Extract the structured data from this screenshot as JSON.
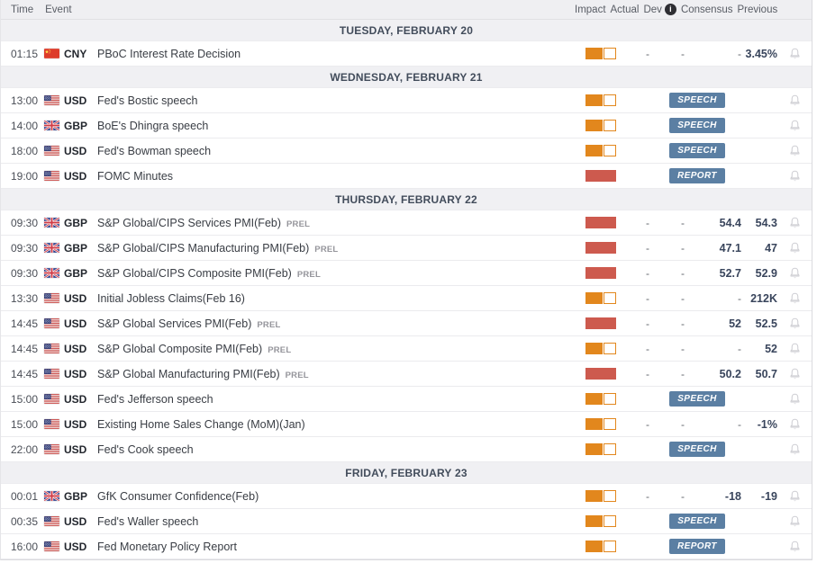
{
  "header": {
    "time": "Time",
    "event": "Event",
    "impact": "Impact",
    "actual": "Actual",
    "dev": "Dev",
    "info": "i",
    "consensus": "Consensus",
    "previous": "Previous"
  },
  "colors": {
    "impact_medium": "#e2871d",
    "impact_high": "#cd5a4e",
    "badge_bg": "#5b7fa3",
    "section_bg": "#f0f0f3",
    "header_bg": "#efeff2",
    "value_text": "#39455c"
  },
  "sections": [
    {
      "date": "TUESDAY, FEBRUARY 20",
      "rows": [
        {
          "time": "01:15",
          "currency": "CNY",
          "flag": "cn",
          "event": "PBoC Interest Rate Decision",
          "impact": "medium",
          "actual": "-",
          "dev": "-",
          "consensus": "-",
          "previous": "3.45%"
        }
      ]
    },
    {
      "date": "WEDNESDAY, FEBRUARY 21",
      "rows": [
        {
          "time": "13:00",
          "currency": "USD",
          "flag": "us",
          "event": "Fed's Bostic speech",
          "impact": "medium",
          "badge": "SPEECH"
        },
        {
          "time": "14:00",
          "currency": "GBP",
          "flag": "gb",
          "event": "BoE's Dhingra speech",
          "impact": "medium",
          "badge": "SPEECH"
        },
        {
          "time": "18:00",
          "currency": "USD",
          "flag": "us",
          "event": "Fed's Bowman speech",
          "impact": "medium",
          "badge": "SPEECH"
        },
        {
          "time": "19:00",
          "currency": "USD",
          "flag": "us",
          "event": "FOMC Minutes",
          "impact": "high",
          "badge": "REPORT"
        }
      ]
    },
    {
      "date": "THURSDAY, FEBRUARY 22",
      "rows": [
        {
          "time": "09:30",
          "currency": "GBP",
          "flag": "gb",
          "event": "S&P Global/CIPS Services PMI(Feb)",
          "prel": "PREL",
          "impact": "high",
          "actual": "-",
          "dev": "-",
          "consensus": "54.4",
          "previous": "54.3"
        },
        {
          "time": "09:30",
          "currency": "GBP",
          "flag": "gb",
          "event": "S&P Global/CIPS Manufacturing PMI(Feb)",
          "prel": "PREL",
          "impact": "high",
          "actual": "-",
          "dev": "-",
          "consensus": "47.1",
          "previous": "47"
        },
        {
          "time": "09:30",
          "currency": "GBP",
          "flag": "gb",
          "event": "S&P Global/CIPS Composite PMI(Feb)",
          "prel": "PREL",
          "impact": "high",
          "actual": "-",
          "dev": "-",
          "consensus": "52.7",
          "previous": "52.9"
        },
        {
          "time": "13:30",
          "currency": "USD",
          "flag": "us",
          "event": "Initial Jobless Claims(Feb 16)",
          "impact": "medium",
          "actual": "-",
          "dev": "-",
          "consensus": "-",
          "previous": "212K"
        },
        {
          "time": "14:45",
          "currency": "USD",
          "flag": "us",
          "event": "S&P Global Services PMI(Feb)",
          "prel": "PREL",
          "impact": "high",
          "actual": "-",
          "dev": "-",
          "consensus": "52",
          "previous": "52.5"
        },
        {
          "time": "14:45",
          "currency": "USD",
          "flag": "us",
          "event": "S&P Global Composite PMI(Feb)",
          "prel": "PREL",
          "impact": "medium",
          "actual": "-",
          "dev": "-",
          "consensus": "-",
          "previous": "52"
        },
        {
          "time": "14:45",
          "currency": "USD",
          "flag": "us",
          "event": "S&P Global Manufacturing PMI(Feb)",
          "prel": "PREL",
          "impact": "high",
          "actual": "-",
          "dev": "-",
          "consensus": "50.2",
          "previous": "50.7"
        },
        {
          "time": "15:00",
          "currency": "USD",
          "flag": "us",
          "event": "Fed's Jefferson speech",
          "impact": "medium",
          "badge": "SPEECH"
        },
        {
          "time": "15:00",
          "currency": "USD",
          "flag": "us",
          "event": "Existing Home Sales Change (MoM)(Jan)",
          "impact": "medium",
          "actual": "-",
          "dev": "-",
          "consensus": "-",
          "previous": "-1%"
        },
        {
          "time": "22:00",
          "currency": "USD",
          "flag": "us",
          "event": "Fed's Cook speech",
          "impact": "medium",
          "badge": "SPEECH"
        }
      ]
    },
    {
      "date": "FRIDAY, FEBRUARY 23",
      "rows": [
        {
          "time": "00:01",
          "currency": "GBP",
          "flag": "gb",
          "event": "GfK Consumer Confidence(Feb)",
          "impact": "medium",
          "actual": "-",
          "dev": "-",
          "consensus": "-18",
          "previous": "-19"
        },
        {
          "time": "00:35",
          "currency": "USD",
          "flag": "us",
          "event": "Fed's Waller speech",
          "impact": "medium",
          "badge": "SPEECH"
        },
        {
          "time": "16:00",
          "currency": "USD",
          "flag": "us",
          "event": "Fed Monetary Policy Report",
          "impact": "medium",
          "badge": "REPORT"
        }
      ]
    }
  ]
}
